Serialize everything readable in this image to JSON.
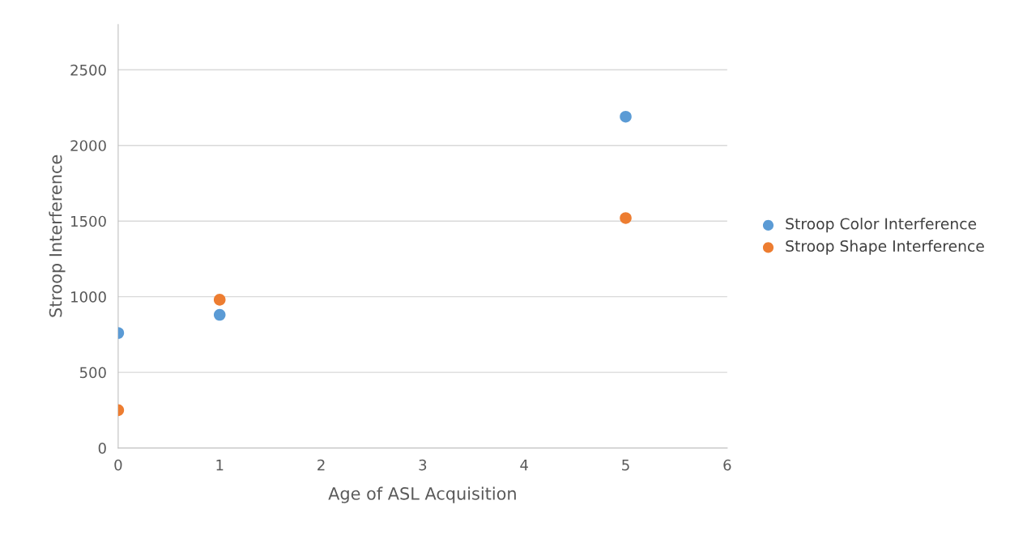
{
  "chart_data": {
    "type": "scatter",
    "xlabel": "Age of ASL Acquisition",
    "ylabel": "Stroop Interference",
    "series": [
      {
        "name": "Stroop Color Interference",
        "color": "#5b9bd5",
        "x": [
          0,
          1,
          5
        ],
        "values": [
          760,
          880,
          2190
        ]
      },
      {
        "name": "Stroop Shape Interference",
        "color": "#ed7d31",
        "x": [
          0,
          1,
          5
        ],
        "values": [
          250,
          980,
          1520
        ]
      }
    ],
    "xlim": [
      0,
      6
    ],
    "xticks": [
      0,
      1,
      2,
      3,
      4,
      5,
      6
    ],
    "ylim": [
      0,
      2800
    ],
    "yticks": [
      0,
      500,
      1000,
      1500,
      2000,
      2500
    ],
    "grid": "y",
    "legend": "right",
    "marker": "circle"
  }
}
